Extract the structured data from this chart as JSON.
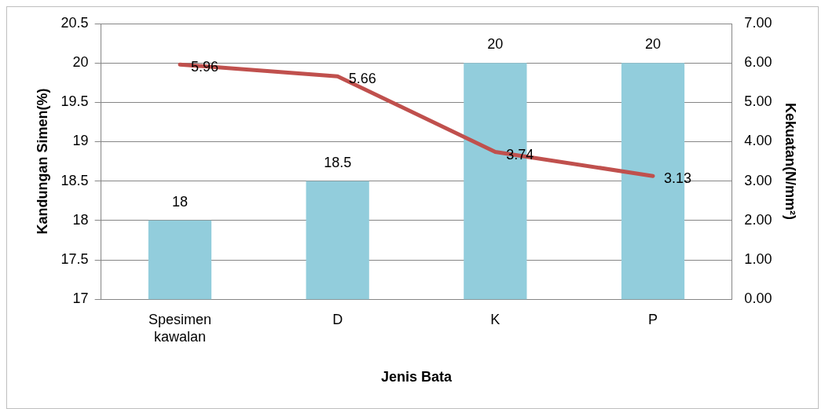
{
  "chart_data": {
    "type": "bar",
    "xlabel": "Jenis Bata",
    "ylabel": "Kandungan Simen(%)",
    "y2label": "Kekuatan(N/mm²)",
    "categories": [
      "Spesimen kawalan",
      "D",
      "K",
      "P"
    ],
    "series": [
      {
        "color": "#92cddc",
        "values": [
          18,
          18.5,
          20,
          20
        ]
      },
      {
        "type": "line",
        "axis": "y2",
        "color": "#c0504d",
        "values": [
          5.96,
          5.66,
          3.74,
          3.13
        ]
      }
    ],
    "ylim": [
      17,
      20.5
    ],
    "yticks": [
      17,
      17.5,
      18,
      18.5,
      19,
      19.5,
      20,
      20.5
    ],
    "y2lim": [
      0,
      7
    ],
    "y2ticks": [
      {
        "value": 0,
        "label": "0.00"
      },
      {
        "value": 1,
        "label": "1.00"
      },
      {
        "value": 2,
        "label": "2.00"
      },
      {
        "value": 3,
        "label": "3.00"
      },
      {
        "value": 4,
        "label": "4.00"
      },
      {
        "value": 5,
        "label": "5.00"
      },
      {
        "value": 6,
        "label": "6.00"
      },
      {
        "value": 7,
        "label": "7.00"
      }
    ],
    "grid": "y",
    "legend": false,
    "marker": "none",
    "data_labels": true
  }
}
